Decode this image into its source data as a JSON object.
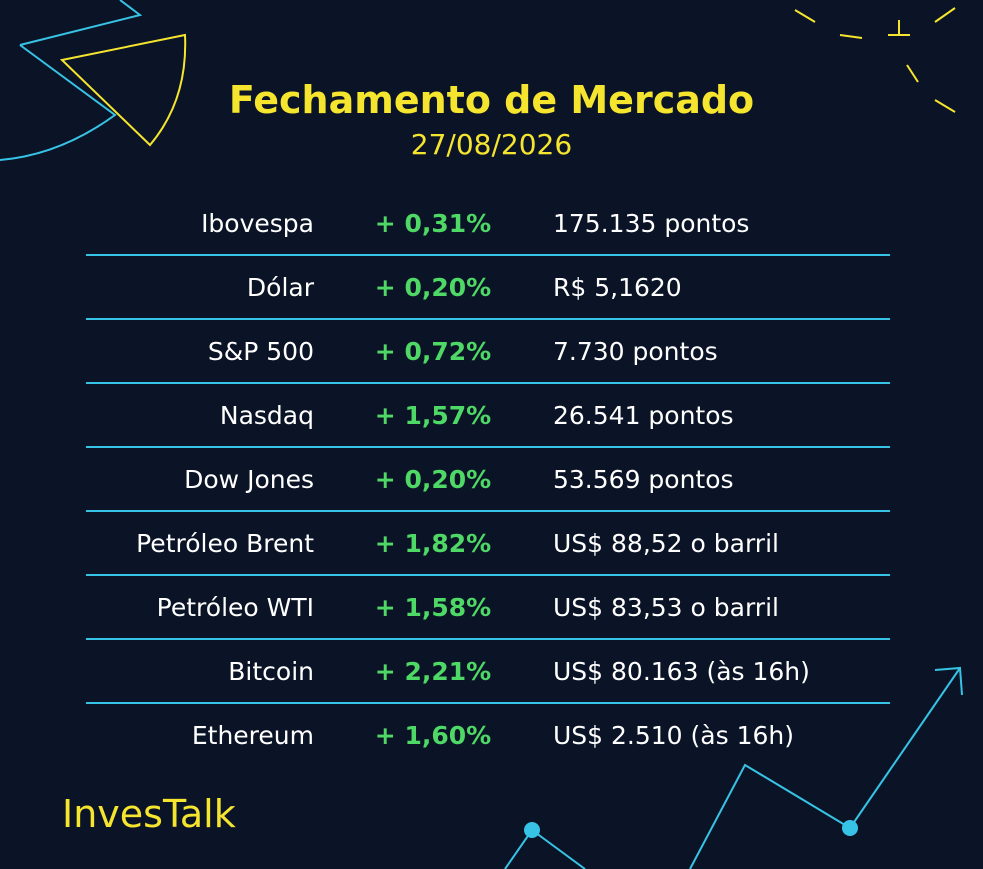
{
  "header": {
    "title": "Fechamento de Mercado",
    "date": "27/08/2026"
  },
  "table": {
    "rows": [
      [
        "Ibovespa",
        "+ 0,31%",
        "175.135 pontos"
      ],
      [
        "Dólar",
        "+ 0,20%",
        "R$ 5,1620"
      ],
      [
        "S&P 500",
        "+ 0,72%",
        "7.730 pontos"
      ],
      [
        "Nasdaq",
        "+ 1,57%",
        "26.541 pontos"
      ],
      [
        "Dow Jones",
        "+ 0,20%",
        "53.569 pontos"
      ],
      [
        "Petróleo Brent",
        "+ 1,82%",
        "US$ 88,52 o barril"
      ],
      [
        "Petróleo WTI",
        "+ 1,58%",
        "US$ 83,53 o barril"
      ],
      [
        "Bitcoin",
        "+ 2,21%",
        "US$ 80.163 (às 16h)"
      ],
      [
        "Ethereum",
        "+ 1,60%",
        "US$ 2.510 (às 16h)"
      ]
    ]
  },
  "footer": {
    "brand": "InvesTalk"
  }
}
